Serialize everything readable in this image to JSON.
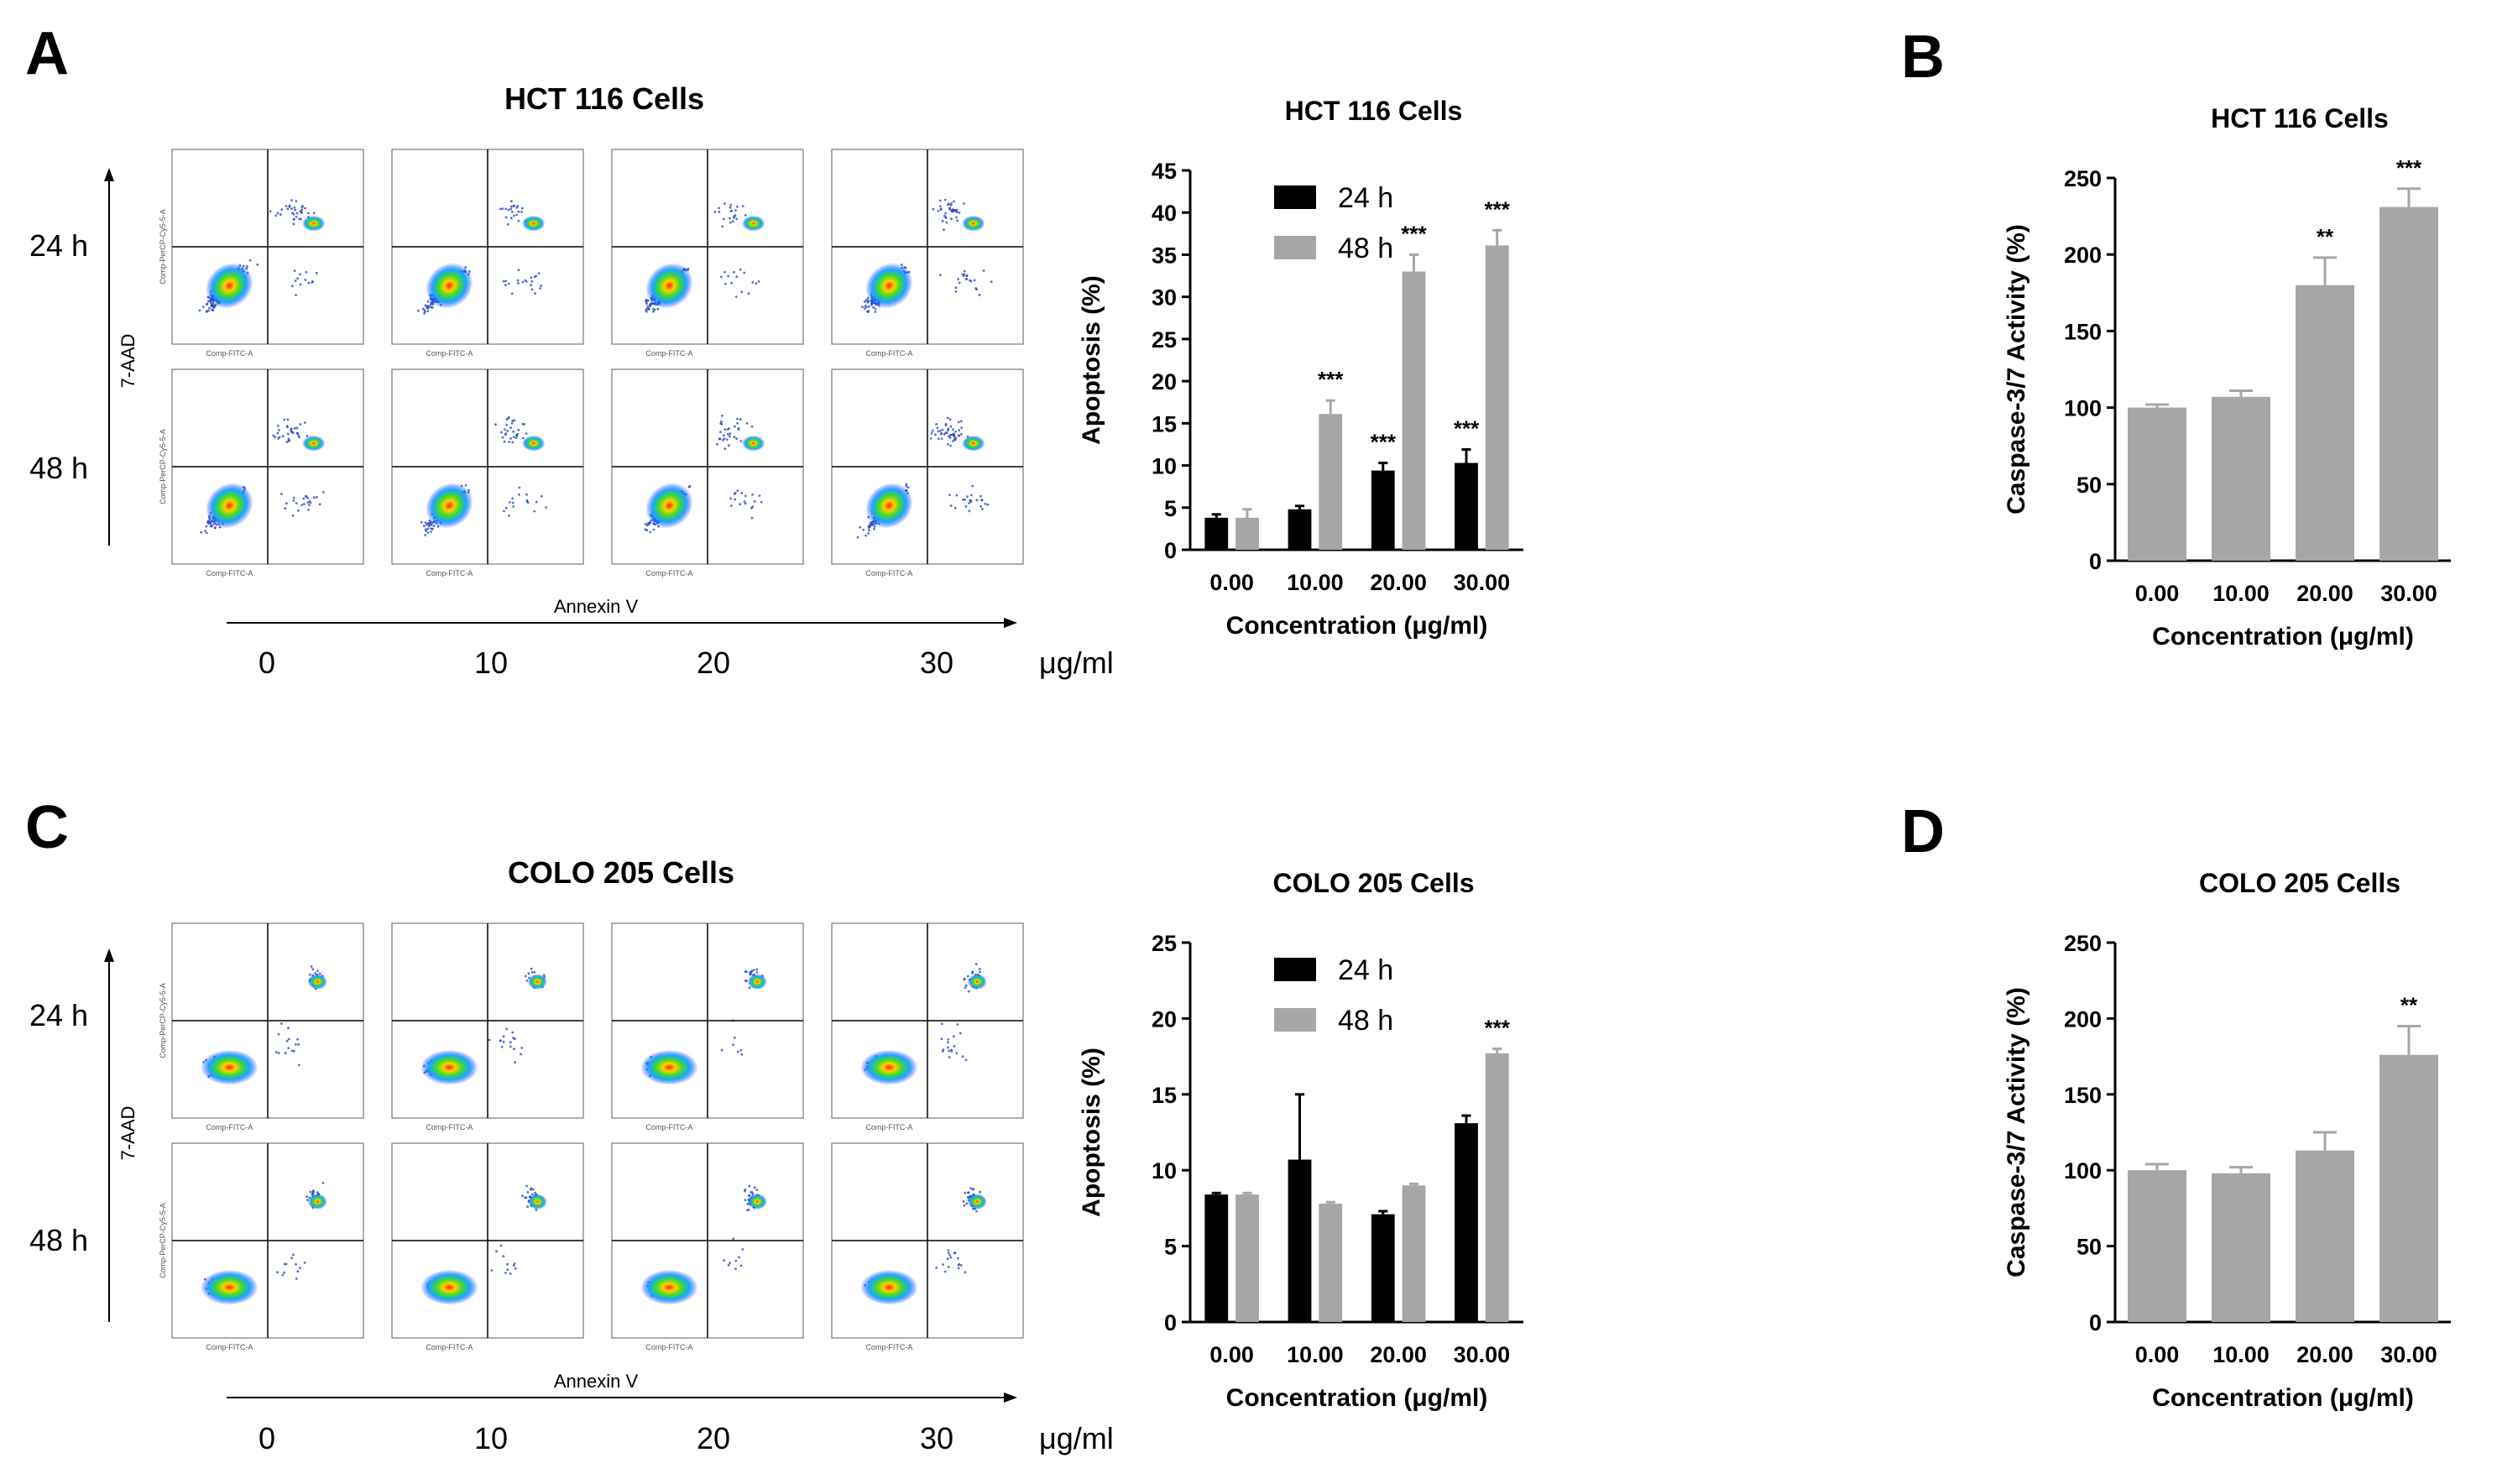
{
  "colors": {
    "black_bar": "#000000",
    "gray_bar": "#a6a6a7"
  },
  "panels": {
    "A": {
      "letter": "A",
      "flow_title": "HCT 116 Cells",
      "rows": [
        "24 h",
        "48 h"
      ],
      "yaxis": "7-AAD",
      "xaxis": "Annexin V",
      "doses": [
        "0",
        "10",
        "20",
        "30"
      ],
      "dose_unit": "μg/ml",
      "plot_xlabel": "Comp-FITC-A",
      "plot_ylabel": "Comp-PerCP-Cy5-5-A"
    },
    "B": {
      "letter": "B"
    },
    "C": {
      "letter": "C",
      "flow_title": "COLO 205 Cells",
      "rows": [
        "24 h",
        "48 h"
      ],
      "yaxis": "7-AAD",
      "xaxis": "Annexin V",
      "doses": [
        "0",
        "10",
        "20",
        "30"
      ],
      "dose_unit": "μg/ml",
      "plot_xlabel": "Comp-FITC-A",
      "plot_ylabel": "Comp-PerCP-Cy5-5-A"
    },
    "D": {
      "letter": "D"
    }
  },
  "chart_data": [
    {
      "id": "A-bar",
      "type": "bar",
      "title": "HCT 116 Cells",
      "xlabel": "Concentration (μg/ml)",
      "ylabel": "Apoptosis (%)",
      "ylim": [
        0,
        45
      ],
      "yticks": [
        "0",
        "5",
        "10",
        "15",
        "20",
        "25",
        "30",
        "35",
        "40",
        "45"
      ],
      "categories": [
        "0.00",
        "10.00",
        "20.00",
        "30.00"
      ],
      "series": [
        {
          "name": "24 h",
          "color": "#000000",
          "values": [
            3.8,
            4.8,
            9.4,
            10.3
          ],
          "errors": [
            0.4,
            0.4,
            0.9,
            1.6
          ],
          "sig": [
            "",
            "",
            "***",
            "***"
          ]
        },
        {
          "name": "48 h",
          "color": "#a6a6a7",
          "values": [
            3.8,
            16.1,
            33.0,
            36.1
          ],
          "errors": [
            1.0,
            1.6,
            2.0,
            1.8
          ],
          "sig": [
            "",
            "***",
            "***",
            "***"
          ]
        }
      ],
      "legend": "top-left"
    },
    {
      "id": "B-bar",
      "type": "bar",
      "title": "HCT 116 Cells",
      "xlabel": "Concentration (μg/ml)",
      "ylabel": "Caspase-3/7 Activity (%)",
      "ylim": [
        0,
        250
      ],
      "yticks": [
        "0",
        "50",
        "100",
        "150",
        "200",
        "250"
      ],
      "categories": [
        "0.00",
        "10.00",
        "20.00",
        "30.00"
      ],
      "series": [
        {
          "name": "Caspase-3/7",
          "color": "#a6a6a7",
          "values": [
            100,
            107,
            180,
            231
          ],
          "errors": [
            2,
            4,
            18,
            12
          ],
          "sig": [
            "",
            "",
            "**",
            "***"
          ]
        }
      ]
    },
    {
      "id": "C-bar",
      "type": "bar",
      "title": "COLO 205 Cells",
      "xlabel": "Concentration (μg/ml)",
      "ylabel": "Apoptosis (%)",
      "ylim": [
        0,
        25
      ],
      "yticks": [
        "0",
        "5",
        "10",
        "15",
        "20",
        "25"
      ],
      "categories": [
        "0.00",
        "10.00",
        "20.00",
        "30.00"
      ],
      "series": [
        {
          "name": "24 h",
          "color": "#000000",
          "values": [
            8.4,
            10.7,
            7.1,
            13.1
          ],
          "errors": [
            0.1,
            4.3,
            0.2,
            0.5
          ],
          "sig": [
            "",
            "",
            "",
            ""
          ]
        },
        {
          "name": "48 h",
          "color": "#a6a6a7",
          "values": [
            8.4,
            7.8,
            9.0,
            17.7
          ],
          "errors": [
            0.1,
            0.1,
            0.1,
            0.3
          ],
          "sig": [
            "",
            "",
            "",
            "***"
          ]
        }
      ],
      "legend": "top-left"
    },
    {
      "id": "D-bar",
      "type": "bar",
      "title": "COLO 205 Cells",
      "xlabel": "Concentration (μg/ml)",
      "ylabel": "Caspase-3/7 Activity (%)",
      "ylim": [
        0,
        250
      ],
      "yticks": [
        "0",
        "50",
        "100",
        "150",
        "200",
        "250"
      ],
      "categories": [
        "0.00",
        "10.00",
        "20.00",
        "30.00"
      ],
      "series": [
        {
          "name": "Caspase-3/7",
          "color": "#a6a6a7",
          "values": [
            100,
            98,
            113,
            176
          ],
          "errors": [
            4,
            4,
            12,
            19
          ],
          "sig": [
            "",
            "",
            "",
            "**"
          ]
        }
      ]
    }
  ]
}
